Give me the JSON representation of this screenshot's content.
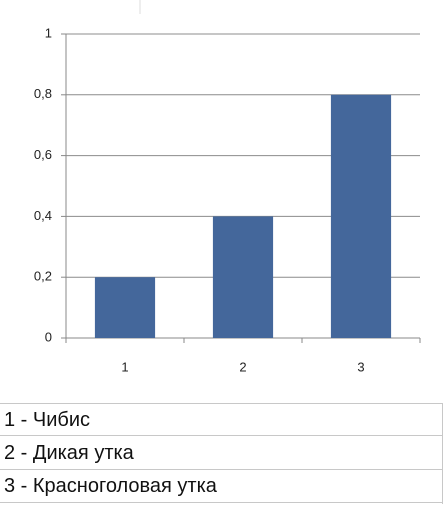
{
  "chart_data": {
    "type": "bar",
    "categories": [
      "1",
      "2",
      "3"
    ],
    "values": [
      0.2,
      0.4,
      0.8
    ],
    "color": "#44679b",
    "ylim": [
      0,
      1
    ],
    "yticks": [
      0,
      {
        "value": 0.2,
        "label": "0,2"
      },
      {
        "value": 0.4,
        "label": "0,4"
      },
      {
        "value": 0.6,
        "label": "0,6"
      },
      {
        "value": 0.8,
        "label": "0,8"
      },
      1
    ],
    "grid": true
  },
  "table": {
    "rows": [
      "1 - Чибис",
      "2 - Дикая утка",
      "3 - Красноголовая утка"
    ]
  }
}
